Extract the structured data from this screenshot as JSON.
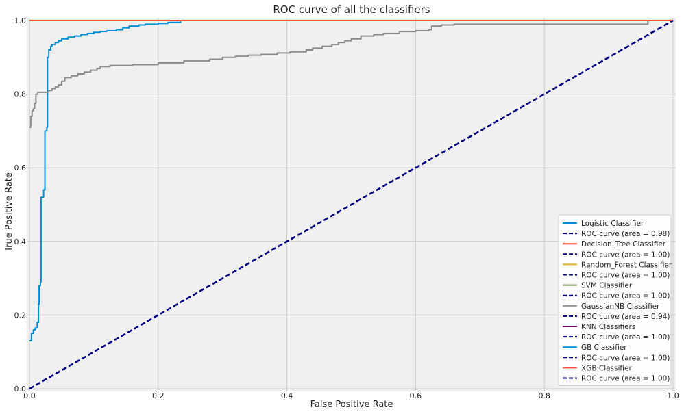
{
  "chart_data": {
    "type": "line",
    "title": "ROC curve of all the classifiers",
    "xlabel": "False Positive Rate",
    "ylabel": "True Positive Rate",
    "xlim": [
      0.0,
      1.0
    ],
    "ylim": [
      0.0,
      1.0
    ],
    "xticks": [
      "0.0",
      "0.2",
      "0.4",
      "0.6",
      "0.8",
      "1.0"
    ],
    "yticks": [
      "0.0",
      "0.2",
      "0.4",
      "0.6",
      "0.8",
      "1.0"
    ],
    "grid": true,
    "legend_position": "bottom-right",
    "series": [
      {
        "name": "Logistic Classifier",
        "color": "#008fd5",
        "step": true,
        "points": [
          [
            0.0,
            0.13
          ],
          [
            0.003,
            0.15
          ],
          [
            0.006,
            0.16
          ],
          [
            0.009,
            0.165
          ],
          [
            0.012,
            0.18
          ],
          [
            0.014,
            0.23
          ],
          [
            0.015,
            0.28
          ],
          [
            0.017,
            0.29
          ],
          [
            0.018,
            0.52
          ],
          [
            0.022,
            0.54
          ],
          [
            0.024,
            0.7
          ],
          [
            0.027,
            0.71
          ],
          [
            0.028,
            0.9
          ],
          [
            0.03,
            0.92
          ],
          [
            0.033,
            0.93
          ],
          [
            0.035,
            0.935
          ],
          [
            0.04,
            0.94
          ],
          [
            0.045,
            0.945
          ],
          [
            0.05,
            0.95
          ],
          [
            0.06,
            0.955
          ],
          [
            0.07,
            0.958
          ],
          [
            0.08,
            0.962
          ],
          [
            0.09,
            0.965
          ],
          [
            0.1,
            0.968
          ],
          [
            0.11,
            0.97
          ],
          [
            0.12,
            0.972
          ],
          [
            0.135,
            0.975
          ],
          [
            0.145,
            0.98
          ],
          [
            0.155,
            0.985
          ],
          [
            0.17,
            0.988
          ],
          [
            0.18,
            0.99
          ],
          [
            0.2,
            0.992
          ],
          [
            0.215,
            0.995
          ],
          [
            0.235,
            0.998
          ]
        ]
      },
      {
        "name": "ROC curve (area = 0.98)",
        "color": "#000080",
        "dashed": true,
        "points": [
          [
            0.0,
            0.0
          ],
          [
            1.0,
            1.0
          ]
        ]
      },
      {
        "name": "Decision_Tree Classifier",
        "color": "#fc4f30",
        "step": true,
        "points": [
          [
            0.0,
            1.0
          ],
          [
            1.0,
            1.0
          ]
        ]
      },
      {
        "name": "ROC curve (area = 1.00)",
        "color": "#000080",
        "dashed": true,
        "points": [
          [
            0.0,
            0.0
          ],
          [
            1.0,
            1.0
          ]
        ]
      },
      {
        "name": "Random_Forest Classifier",
        "color": "#e5ae38",
        "step": true,
        "points": [
          [
            0.0,
            1.0
          ],
          [
            1.0,
            1.0
          ]
        ]
      },
      {
        "name": "ROC curve (area = 1.00)",
        "color": "#000080",
        "dashed": true,
        "points": [
          [
            0.0,
            0.0
          ],
          [
            1.0,
            1.0
          ]
        ]
      },
      {
        "name": "SVM Classifier",
        "color": "#6d904f",
        "step": true,
        "points": [
          [
            0.0,
            1.0
          ],
          [
            1.0,
            1.0
          ]
        ]
      },
      {
        "name": "ROC curve (area = 1.00)",
        "color": "#000080",
        "dashed": true,
        "points": [
          [
            0.0,
            0.0
          ],
          [
            1.0,
            1.0
          ]
        ]
      },
      {
        "name": "GaussianNB Classifier",
        "color": "#8b8b8b",
        "step": true,
        "points": [
          [
            0.0,
            0.71
          ],
          [
            0.002,
            0.74
          ],
          [
            0.004,
            0.755
          ],
          [
            0.006,
            0.76
          ],
          [
            0.008,
            0.775
          ],
          [
            0.01,
            0.8
          ],
          [
            0.013,
            0.805
          ],
          [
            0.03,
            0.81
          ],
          [
            0.035,
            0.815
          ],
          [
            0.04,
            0.82
          ],
          [
            0.045,
            0.825
          ],
          [
            0.05,
            0.835
          ],
          [
            0.055,
            0.845
          ],
          [
            0.065,
            0.85
          ],
          [
            0.075,
            0.855
          ],
          [
            0.085,
            0.86
          ],
          [
            0.095,
            0.865
          ],
          [
            0.105,
            0.87
          ],
          [
            0.11,
            0.875
          ],
          [
            0.125,
            0.878
          ],
          [
            0.16,
            0.88
          ],
          [
            0.2,
            0.885
          ],
          [
            0.24,
            0.89
          ],
          [
            0.28,
            0.895
          ],
          [
            0.3,
            0.9
          ],
          [
            0.32,
            0.903
          ],
          [
            0.34,
            0.906
          ],
          [
            0.36,
            0.908
          ],
          [
            0.385,
            0.912
          ],
          [
            0.405,
            0.915
          ],
          [
            0.43,
            0.92
          ],
          [
            0.44,
            0.925
          ],
          [
            0.455,
            0.93
          ],
          [
            0.47,
            0.935
          ],
          [
            0.48,
            0.94
          ],
          [
            0.49,
            0.945
          ],
          [
            0.5,
            0.95
          ],
          [
            0.515,
            0.958
          ],
          [
            0.535,
            0.962
          ],
          [
            0.55,
            0.965
          ],
          [
            0.575,
            0.97
          ],
          [
            0.6,
            0.972
          ],
          [
            0.62,
            0.975
          ],
          [
            0.625,
            0.985
          ],
          [
            0.64,
            0.988
          ],
          [
            0.66,
            0.99
          ],
          [
            0.96,
            0.99
          ],
          [
            0.961,
            1.0
          ],
          [
            1.0,
            1.0
          ]
        ]
      },
      {
        "name": "ROC curve (area = 0.94)",
        "color": "#000080",
        "dashed": true,
        "points": [
          [
            0.0,
            0.0
          ],
          [
            1.0,
            1.0
          ]
        ]
      },
      {
        "name": "KNN Classifiers",
        "color": "#810f7c",
        "step": true,
        "points": [
          [
            0.0,
            1.0
          ],
          [
            1.0,
            1.0
          ]
        ]
      },
      {
        "name": "ROC curve (area = 1.00)",
        "color": "#000080",
        "dashed": true,
        "points": [
          [
            0.0,
            0.0
          ],
          [
            1.0,
            1.0
          ]
        ]
      },
      {
        "name": "GB Classifier",
        "color": "#008fd5",
        "step": true,
        "points": [
          [
            0.0,
            1.0
          ],
          [
            1.0,
            1.0
          ]
        ]
      },
      {
        "name": "ROC curve (area = 1.00)",
        "color": "#000080",
        "dashed": true,
        "points": [
          [
            0.0,
            0.0
          ],
          [
            1.0,
            1.0
          ]
        ]
      },
      {
        "name": "XGB Classifier",
        "color": "#fc4f30",
        "step": true,
        "points": [
          [
            0.0,
            1.0
          ],
          [
            1.0,
            1.0
          ]
        ]
      },
      {
        "name": "ROC curve (area = 1.00)",
        "color": "#000080",
        "dashed": true,
        "points": [
          [
            0.0,
            0.0
          ],
          [
            1.0,
            1.0
          ]
        ]
      }
    ]
  },
  "style": {
    "plot_background": "#f0f0f0",
    "grid_color": "#cbcbcb",
    "legend_background": "#ffffff"
  }
}
